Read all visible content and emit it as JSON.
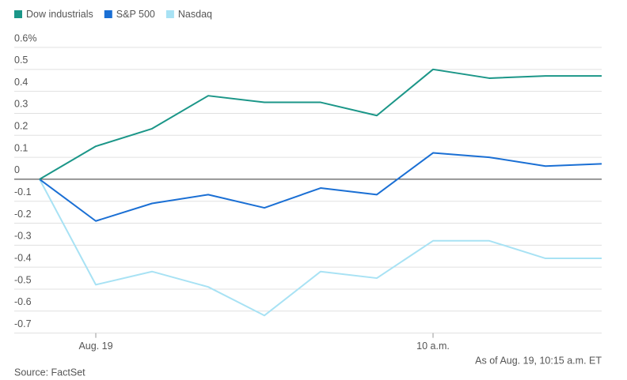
{
  "chart_data": {
    "type": "line",
    "categories": [
      null,
      "Aug. 19",
      null,
      null,
      null,
      null,
      null,
      "10 a.m.",
      null,
      null,
      null
    ],
    "series": [
      {
        "name": "Dow industrials",
        "color": "#1b9688",
        "values": [
          0,
          0.15,
          0.23,
          0.38,
          0.35,
          0.35,
          0.29,
          0.5,
          0.46,
          0.47,
          0.47
        ]
      },
      {
        "name": "S&P 500",
        "color": "#1a6fd4",
        "values": [
          0,
          -0.19,
          -0.11,
          -0.07,
          -0.13,
          -0.04,
          -0.07,
          0.12,
          0.1,
          0.06,
          0.07
        ]
      },
      {
        "name": "Nasdaq",
        "color": "#a8e2f4",
        "values": [
          0,
          -0.48,
          -0.42,
          -0.49,
          -0.62,
          -0.42,
          -0.45,
          -0.28,
          -0.28,
          -0.36,
          -0.36
        ]
      }
    ],
    "ylim": [
      -0.7,
      0.6
    ],
    "yticks": [
      {
        "value": 0.6,
        "label": "0.6%"
      },
      0.5,
      0.4,
      0.3,
      0.2,
      0.1,
      0,
      -0.1,
      -0.2,
      -0.3,
      -0.4,
      -0.5,
      -0.6,
      -0.7
    ],
    "grid": true,
    "legend": "top-left",
    "note": "As of Aug. 19, 10:15 a.m. ET",
    "source": "Source: FactSet"
  }
}
